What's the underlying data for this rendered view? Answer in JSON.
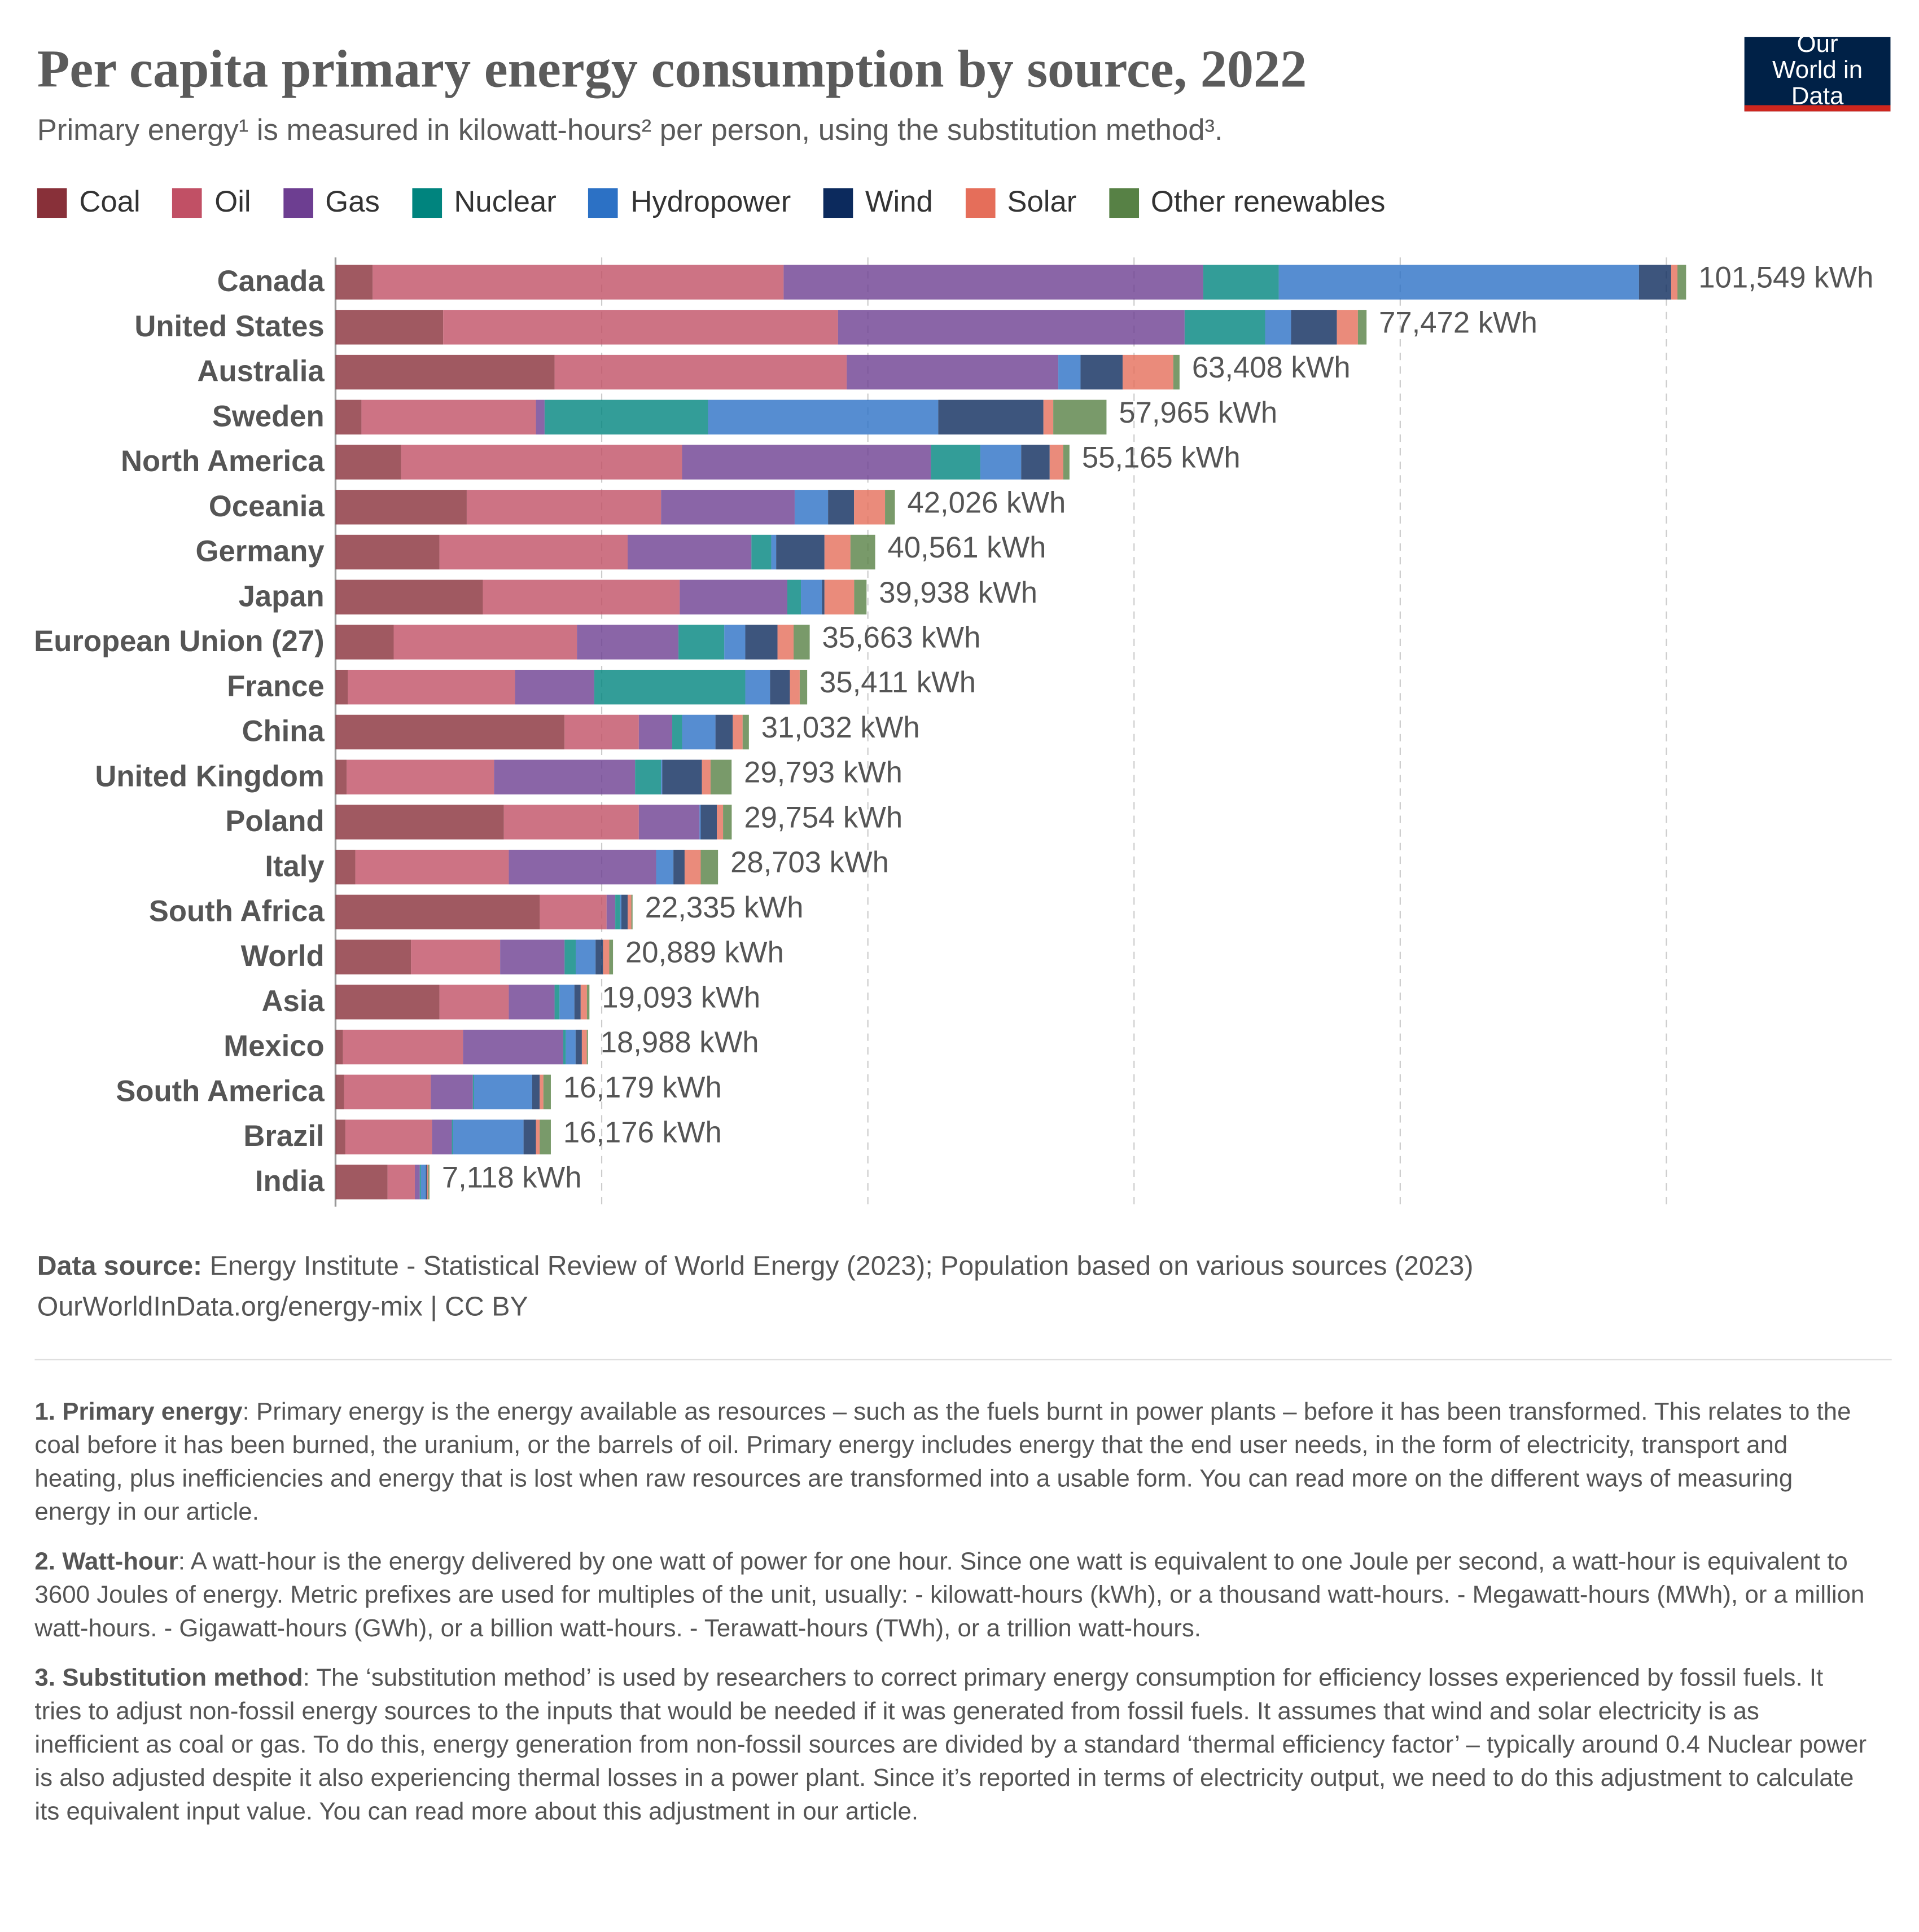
{
  "chart_data": {
    "type": "stacked-barh",
    "title": "Per capita primary energy consumption by source, 2022",
    "subtitle": "Primary energy¹ is measured in kilowatt-hours² per person, using the substitution method³.",
    "logo": "Our World in Data",
    "categories": [
      "Canada",
      "United States",
      "Australia",
      "Sweden",
      "North America",
      "Oceania",
      "Germany",
      "Japan",
      "European Union (27)",
      "France",
      "China",
      "United Kingdom",
      "Poland",
      "Italy",
      "South Africa",
      "World",
      "Asia",
      "Mexico",
      "South America",
      "Brazil",
      "India"
    ],
    "series": [
      {
        "name": "Coal",
        "color": "#883039",
        "values": [
          2790,
          8090,
          16460,
          1950,
          4930,
          9860,
          7810,
          11070,
          4370,
          930,
          17210,
          840,
          12650,
          1490,
          15350,
          5670,
          7810,
          560,
          650,
          740,
          3910
        ]
      },
      {
        "name": "Oil",
        "color": "#c15065",
        "values": [
          30880,
          29670,
          21950,
          13110,
          21110,
          14600,
          14140,
          14790,
          13770,
          12560,
          5580,
          11070,
          10140,
          11530,
          5020,
          6700,
          5210,
          9020,
          6510,
          6510,
          2050
        ]
      },
      {
        "name": "Gas",
        "color": "#6d3e91",
        "values": [
          31530,
          26040,
          15900,
          650,
          18690,
          10040,
          9300,
          8090,
          7630,
          5950,
          2510,
          10600,
          4560,
          11070,
          650,
          4840,
          3440,
          7530,
          3160,
          1490,
          370
        ]
      },
      {
        "name": "Nuclear",
        "color": "#00847e",
        "values": [
          5670,
          6050,
          0,
          12280,
          3720,
          0,
          1490,
          1020,
          3440,
          11350,
          740,
          1950,
          0,
          0,
          370,
          840,
          370,
          190,
          90,
          90,
          90
        ]
      },
      {
        "name": "Hydropower",
        "color": "#2c71c5",
        "values": [
          27070,
          1950,
          1670,
          17300,
          3070,
          2510,
          370,
          1580,
          1580,
          1860,
          2510,
          90,
          90,
          1300,
          90,
          1490,
          1120,
          740,
          4370,
          5300,
          370
        ]
      },
      {
        "name": "Wind",
        "color": "#0c2a5d",
        "values": [
          2420,
          3440,
          3160,
          7900,
          2140,
          1950,
          3630,
          190,
          2420,
          1490,
          1300,
          2980,
          1210,
          840,
          470,
          560,
          470,
          470,
          560,
          930,
          90
        ]
      },
      {
        "name": "Solar",
        "color": "#e56e5a",
        "values": [
          470,
          1580,
          3810,
          740,
          1020,
          2330,
          1950,
          2230,
          1210,
          740,
          740,
          650,
          470,
          1210,
          280,
          470,
          470,
          370,
          280,
          280,
          90
        ]
      },
      {
        "name": "Other renewables",
        "color": "#578145",
        "values": [
          650,
          650,
          470,
          4000,
          470,
          740,
          1860,
          930,
          1210,
          560,
          470,
          1580,
          650,
          1300,
          90,
          280,
          190,
          90,
          560,
          840,
          90
        ]
      }
    ],
    "totals": [
      101549,
      77472,
      63408,
      57965,
      55165,
      42026,
      40561,
      39938,
      35663,
      35411,
      31032,
      29793,
      29754,
      28703,
      22335,
      20889,
      19093,
      18988,
      16179,
      16176,
      7118
    ],
    "total_labels": [
      "101,549 kWh",
      "77,472 kWh",
      "63,408 kWh",
      "57,965 kWh",
      "55,165 kWh",
      "42,026 kWh",
      "40,561 kWh",
      "39,938 kWh",
      "35,663 kWh",
      "35,411 kWh",
      "31,032 kWh",
      "29,793 kWh",
      "29,754 kWh",
      "28,703 kWh",
      "22,335 kWh",
      "20,889 kWh",
      "19,093 kWh",
      "18,988 kWh",
      "16,179 kWh",
      "16,176 kWh",
      "7,118 kWh"
    ],
    "xlim": [
      0,
      100000
    ],
    "xticks": [
      0,
      20000,
      40000,
      60000,
      80000,
      100000
    ],
    "show_tick_labels": false,
    "grid": true,
    "source_label": "Data source:",
    "source": "Energy Institute - Statistical Review of World Energy (2023); Population based on various sources (2023)",
    "url": "OurWorldInData.org/energy-mix | CC BY",
    "notes": [
      {
        "term": "1. Primary energy",
        "text": ": Primary energy is the energy available as resources – such as the fuels burnt in power plants – before it has been transformed. This relates to the coal before it has been burned, the uranium, or the barrels of oil. Primary energy includes energy that the end user needs, in the form of electricity, transport and heating, plus inefficiencies and energy that is lost when raw resources are transformed into a usable form. You can read more on the different ways of measuring energy in our article."
      },
      {
        "term": "2. Watt-hour",
        "text": ": A watt-hour is the energy delivered by one watt of power for one hour. Since one watt is equivalent to one Joule per second, a watt-hour is equivalent to 3600 Joules of energy. Metric prefixes are used for multiples of the unit, usually: - kilowatt-hours (kWh), or a thousand watt-hours. - Megawatt-hours (MWh), or a million watt-hours. - Gigawatt-hours (GWh), or a billion watt-hours. - Terawatt-hours (TWh), or a trillion watt-hours."
      },
      {
        "term": "3. Substitution method",
        "text": ": The ‘substitution method’ is used by researchers to correct primary energy consumption for efficiency losses experienced by fossil fuels. It tries to adjust non-fossil energy sources to the inputs that would be needed if it was generated from fossil fuels. It assumes that wind and solar electricity is as inefficient as coal or gas. To do this, energy generation from non-fossil sources are divided by a standard ‘thermal efficiency factor’ – typically around 0.4 Nuclear power is also adjusted despite it also experiencing thermal losses in a power plant. Since it’s reported in terms of electricity output, we need to do this adjustment to calculate its equivalent input value. You can read more about this adjustment in our article."
      }
    ]
  }
}
